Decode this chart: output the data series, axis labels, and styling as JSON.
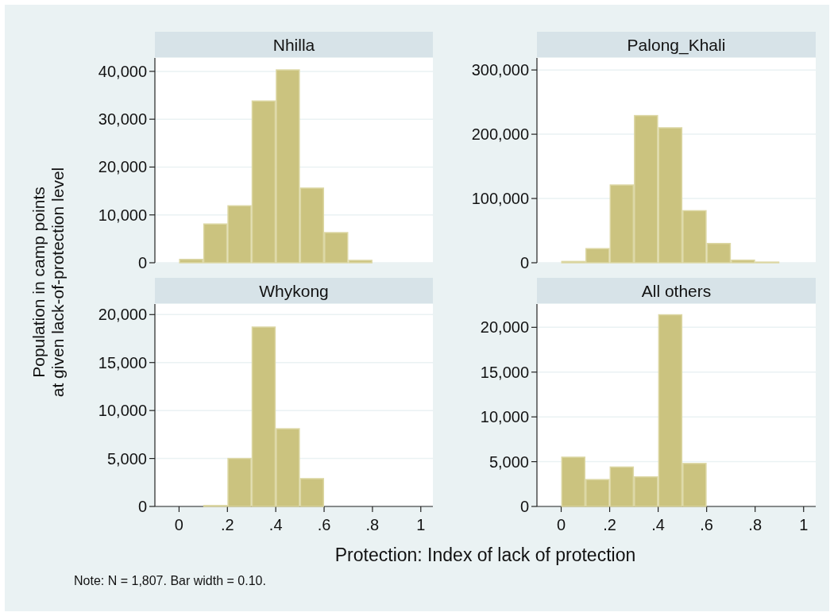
{
  "chart_data": [
    {
      "type": "histogram",
      "title": "Nhilla",
      "ylabel": "Population in camp points\nat given lack-of-protection level",
      "bins": [
        0,
        0.1,
        0.2,
        0.3,
        0.4,
        0.5,
        0.6,
        0.7,
        0.8
      ],
      "values": [
        700,
        8100,
        11900,
        33800,
        40300,
        15600,
        6300,
        500
      ],
      "color": "#cbc37f",
      "xlim": [
        -0.1,
        1.05
      ],
      "ylim": [
        0,
        42800
      ],
      "yticks": [
        {
          "value": 0,
          "label": "0"
        },
        {
          "value": 10000,
          "label": "10,000"
        },
        {
          "value": 20000,
          "label": "20,000"
        },
        {
          "value": 30000,
          "label": "30,000"
        },
        {
          "value": 40000,
          "label": "40,000"
        }
      ],
      "grid": "y",
      "tick_labels": "y"
    },
    {
      "type": "histogram",
      "title": "Palong_Khali",
      "bins": [
        0,
        0.1,
        0.2,
        0.3,
        0.4,
        0.5,
        0.6,
        0.7,
        0.8,
        0.9
      ],
      "values": [
        2000,
        22000,
        121000,
        229000,
        210000,
        81000,
        30000,
        4000,
        1000
      ],
      "color": "#cbc37f",
      "xlim": [
        -0.1,
        1.05
      ],
      "ylim": [
        0,
        318700
      ],
      "yticks": [
        {
          "value": 0,
          "label": "0"
        },
        {
          "value": 100000,
          "label": "100,000"
        },
        {
          "value": 200000,
          "label": "200,000"
        },
        {
          "value": 300000,
          "label": "300,000"
        }
      ],
      "grid": "y",
      "tick_labels": "y"
    },
    {
      "type": "histogram",
      "title": "Whykong",
      "xlabel": "Protection: Index of lack of protection",
      "annotations": [
        "Note: N = 1,807. Bar width = 0.10."
      ],
      "bins": [
        0.1,
        0.2,
        0.3,
        0.4,
        0.5,
        0.6
      ],
      "values": [
        100,
        5000,
        18700,
        8100,
        2900
      ],
      "color": "#cbc37f",
      "xlim": [
        -0.1,
        1.05
      ],
      "xticks": [
        {
          "value": 0,
          "label": "0"
        },
        {
          "value": 0.2,
          "label": ".2"
        },
        {
          "value": 0.4,
          "label": ".4"
        },
        {
          "value": 0.6,
          "label": ".6"
        },
        {
          "value": 0.8,
          "label": ".8"
        },
        {
          "value": 1,
          "label": "1"
        }
      ],
      "ylim": [
        0,
        21100
      ],
      "yticks": [
        {
          "value": 0,
          "label": "0"
        },
        {
          "value": 5000,
          "label": "5,000"
        },
        {
          "value": 10000,
          "label": "10,000"
        },
        {
          "value": 15000,
          "label": "15,000"
        },
        {
          "value": 20000,
          "label": "20,000"
        }
      ],
      "grid": "y"
    },
    {
      "type": "histogram",
      "title": "All others",
      "bins": [
        0,
        0.1,
        0.2,
        0.3,
        0.4,
        0.5,
        0.6
      ],
      "values": [
        5500,
        3000,
        4400,
        3300,
        21400,
        4800
      ],
      "color": "#cbc37f",
      "xlim": [
        -0.1,
        1.05
      ],
      "xticks": [
        {
          "value": 0,
          "label": "0"
        },
        {
          "value": 0.2,
          "label": ".2"
        },
        {
          "value": 0.4,
          "label": ".4"
        },
        {
          "value": 0.6,
          "label": ".6"
        },
        {
          "value": 0.8,
          "label": ".8"
        },
        {
          "value": 1,
          "label": "1"
        }
      ],
      "ylim": [
        0,
        22600
      ],
      "yticks": [
        {
          "value": 0,
          "label": "0"
        },
        {
          "value": 5000,
          "label": "5,000"
        },
        {
          "value": 10000,
          "label": "10,000"
        },
        {
          "value": 15000,
          "label": "15,000"
        },
        {
          "value": 20000,
          "label": "20,000"
        }
      ],
      "grid": "y"
    }
  ]
}
